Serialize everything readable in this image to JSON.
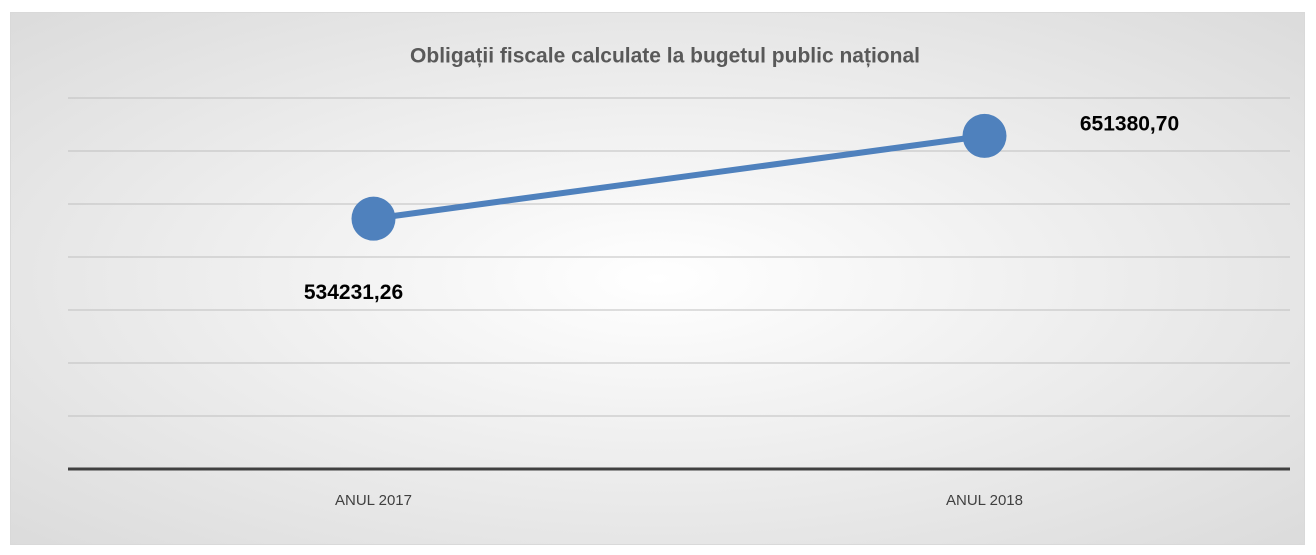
{
  "chart_data": {
    "type": "line",
    "title": "Obligații fiscale calculate la bugetul public național",
    "categories": [
      "ANUL 2017",
      "ANUL 2018"
    ],
    "values": [
      534231.26,
      651380.7
    ],
    "value_labels": [
      "534231,26",
      "651380,70"
    ],
    "color": "#4f81bd",
    "ylim": [
      180000,
      705000
    ],
    "yticks": [
      180000,
      255000,
      330000,
      405000,
      480000,
      555000,
      630000,
      705000
    ],
    "grid": true
  }
}
